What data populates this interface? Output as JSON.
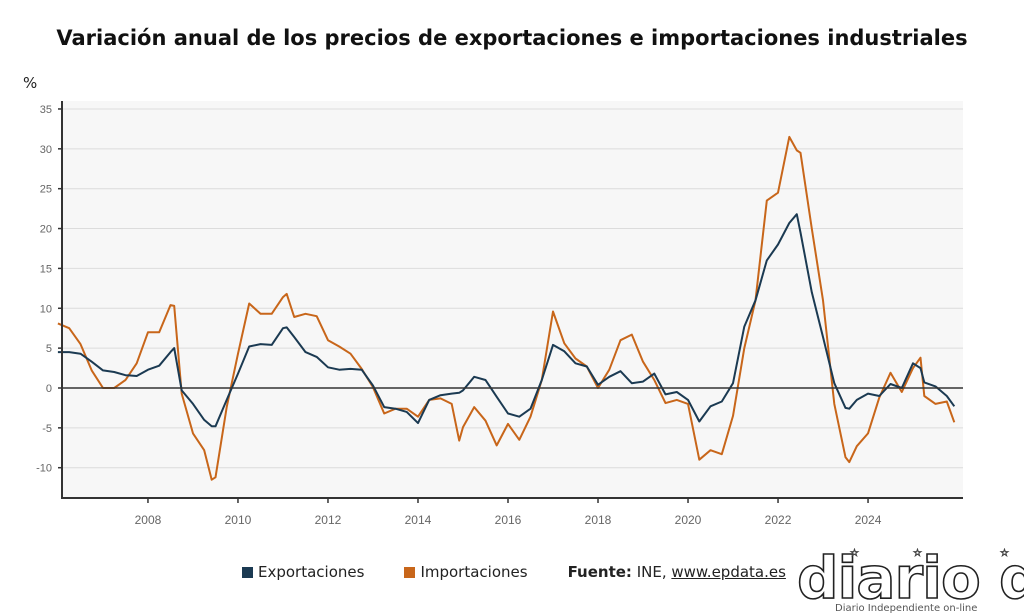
{
  "chart_data": {
    "type": "line",
    "title": "Variación anual de los precios de exportaciones e importaciones industriales",
    "ylabel": "%",
    "xlabel": "",
    "ylim": [
      -13.8,
      36
    ],
    "xlim": [
      "2006-01",
      "2026-01"
    ],
    "yticks": [
      35,
      30,
      25,
      20,
      15,
      10,
      5,
      0,
      -5,
      -10
    ],
    "xticks": [
      "2008",
      "2010",
      "2012",
      "2014",
      "2016",
      "2018",
      "2020",
      "2022",
      "2024"
    ],
    "grid": true,
    "legend_position": "bottom",
    "x": [
      "2006-01",
      "2006-04",
      "2006-07",
      "2006-10",
      "2007-01",
      "2007-04",
      "2007-07",
      "2007-10",
      "2008-01",
      "2008-04",
      "2008-07",
      "2008-08",
      "2008-10",
      "2009-01",
      "2009-04",
      "2009-06",
      "2009-07",
      "2009-10",
      "2010-01",
      "2010-04",
      "2010-07",
      "2010-10",
      "2011-01",
      "2011-02",
      "2011-04",
      "2011-07",
      "2011-10",
      "2012-01",
      "2012-04",
      "2012-07",
      "2012-10",
      "2013-01",
      "2013-04",
      "2013-07",
      "2013-10",
      "2014-01",
      "2014-04",
      "2014-07",
      "2014-10",
      "2014-12",
      "2015-01",
      "2015-04",
      "2015-07",
      "2015-10",
      "2016-01",
      "2016-04",
      "2016-07",
      "2016-10",
      "2017-01",
      "2017-04",
      "2017-07",
      "2017-10",
      "2018-01",
      "2018-04",
      "2018-07",
      "2018-10",
      "2019-01",
      "2019-04",
      "2019-07",
      "2019-10",
      "2020-01",
      "2020-04",
      "2020-07",
      "2020-10",
      "2021-01",
      "2021-04",
      "2021-07",
      "2021-10",
      "2022-01",
      "2022-04",
      "2022-06",
      "2022-07",
      "2022-10",
      "2023-01",
      "2023-04",
      "2023-07",
      "2023-08",
      "2023-10",
      "2024-01",
      "2024-04",
      "2024-07",
      "2024-10",
      "2025-01",
      "2025-03",
      "2025-04",
      "2025-07",
      "2025-10",
      "2025-12"
    ],
    "series": [
      {
        "name": "Exportaciones",
        "color": "#1b3a52",
        "values": [
          4.5,
          4.5,
          4.3,
          3.3,
          2.2,
          2.0,
          1.6,
          1.5,
          2.3,
          2.8,
          4.5,
          5.0,
          -0.3,
          -2.0,
          -4.0,
          -4.8,
          -4.8,
          -1.5,
          1.8,
          5.2,
          5.5,
          5.4,
          7.5,
          7.6,
          6.4,
          4.5,
          3.9,
          2.6,
          2.3,
          2.4,
          2.3,
          0.3,
          -2.4,
          -2.6,
          -3.0,
          -4.4,
          -1.5,
          -0.9,
          -0.7,
          -0.6,
          -0.3,
          1.4,
          1.0,
          -1.1,
          -3.2,
          -3.6,
          -2.6,
          1.0,
          5.4,
          4.6,
          3.1,
          2.7,
          0.4,
          1.4,
          2.1,
          0.6,
          0.8,
          1.8,
          -0.8,
          -0.5,
          -1.5,
          -4.2,
          -2.3,
          -1.7,
          0.6,
          7.7,
          11.0,
          16.0,
          18.0,
          20.7,
          21.8,
          19.5,
          12.0,
          6.4,
          0.6,
          -2.5,
          -2.6,
          -1.5,
          -0.7,
          -1.0,
          0.5,
          0.0,
          3.1,
          2.5,
          0.7,
          0.2,
          -1.0,
          -2.3
        ]
      },
      {
        "name": "Importaciones",
        "color": "#c8661a",
        "values": [
          8.1,
          7.5,
          5.5,
          2.2,
          0.0,
          0.0,
          1.0,
          3.1,
          7.0,
          7.0,
          10.4,
          10.3,
          -0.7,
          -5.7,
          -7.8,
          -11.5,
          -11.2,
          -2.4,
          4.3,
          10.6,
          9.3,
          9.3,
          11.4,
          11.8,
          8.9,
          9.3,
          9.0,
          6.0,
          5.2,
          4.3,
          2.4,
          0.1,
          -3.2,
          -2.6,
          -2.6,
          -3.6,
          -1.5,
          -1.3,
          -2.0,
          -6.6,
          -4.9,
          -2.4,
          -4.1,
          -7.2,
          -4.5,
          -6.5,
          -3.6,
          1.0,
          9.6,
          5.6,
          3.7,
          2.7,
          0.0,
          2.3,
          6.0,
          6.7,
          3.3,
          1.0,
          -1.9,
          -1.5,
          -2.0,
          -9.0,
          -7.8,
          -8.3,
          -3.5,
          5.0,
          11.0,
          23.5,
          24.5,
          31.5,
          29.8,
          29.5,
          20.0,
          11.0,
          -2.0,
          -8.7,
          -9.3,
          -7.3,
          -5.7,
          -1.2,
          1.9,
          -0.5,
          2.5,
          3.8,
          -1.0,
          -2.0,
          -1.7,
          -4.3
        ]
      }
    ]
  },
  "legend": {
    "items": [
      "Exportaciones",
      "Importaciones"
    ],
    "colors": [
      "#1b3a52",
      "#c8661a"
    ]
  },
  "source": {
    "label": "Fuente:",
    "text": " INE, ",
    "link": "www.epdata.es"
  },
  "logo": {
    "text": "diario dia",
    "tagline": "Diario Independiente on-line"
  }
}
